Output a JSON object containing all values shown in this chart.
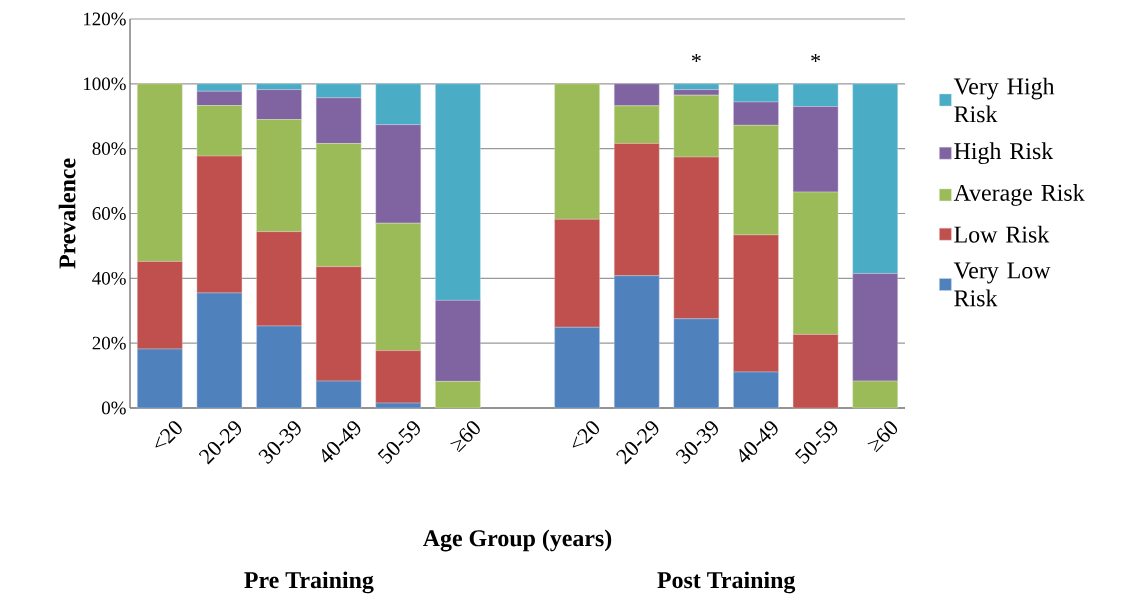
{
  "chart_data": {
    "type": "bar",
    "stacked": true,
    "xlabel": "Age Group (years)",
    "ylabel": "Prevalence",
    "categories": [
      "<20",
      "20-29",
      "30-39",
      "40-49",
      "50-59",
      "≥60",
      null,
      "<20",
      "20-29",
      "30-39",
      "40-49",
      "50-59",
      "≥60"
    ],
    "series": [
      {
        "name": "Very Low Risk",
        "color": "#4f81bd",
        "values": [
          18.2,
          35.5,
          25.3,
          8.3,
          1.5,
          0,
          null,
          24.9,
          40.8,
          27.5,
          11.1,
          0,
          0
        ]
      },
      {
        "name": "Low Risk",
        "color": "#c0504d",
        "values": [
          27.0,
          42.2,
          29.1,
          35.3,
          16.2,
          0,
          null,
          33.3,
          40.8,
          49.9,
          42.3,
          22.7,
          0
        ]
      },
      {
        "name": "Average Risk",
        "color": "#9bbb59",
        "values": [
          54.8,
          15.6,
          34.6,
          38.0,
          39.3,
          8.2,
          null,
          41.8,
          11.6,
          19.1,
          33.8,
          43.9,
          8.3
        ]
      },
      {
        "name": "High Risk",
        "color": "#8064a2",
        "values": [
          0,
          4.4,
          9.2,
          14.1,
          30.4,
          25.0,
          null,
          0,
          6.8,
          1.7,
          7.2,
          26.4,
          33.2
        ]
      },
      {
        "name": "Very High Risk",
        "color": "#4bacc6",
        "values": [
          0,
          2.3,
          1.8,
          4.3,
          12.6,
          66.8,
          null,
          0,
          0,
          1.8,
          5.6,
          7.0,
          58.5
        ],
        "value_labels": [
          null,
          null,
          null,
          null,
          null,
          null,
          null,
          null,
          null,
          "*",
          null,
          "*",
          null
        ]
      }
    ],
    "ylim": [
      0,
      120
    ],
    "yticks": [
      {
        "value": 0,
        "label": "0%"
      },
      {
        "value": 20,
        "label": "20%"
      },
      {
        "value": 40,
        "label": "40%"
      },
      {
        "value": 60,
        "label": "60%"
      },
      {
        "value": 80,
        "label": "80%"
      },
      {
        "value": 100,
        "label": "100%"
      },
      {
        "value": 120,
        "label": "120%"
      }
    ],
    "grid": "y",
    "legend": "right",
    "annotations": [
      "Pre Training",
      "Post Training"
    ]
  }
}
